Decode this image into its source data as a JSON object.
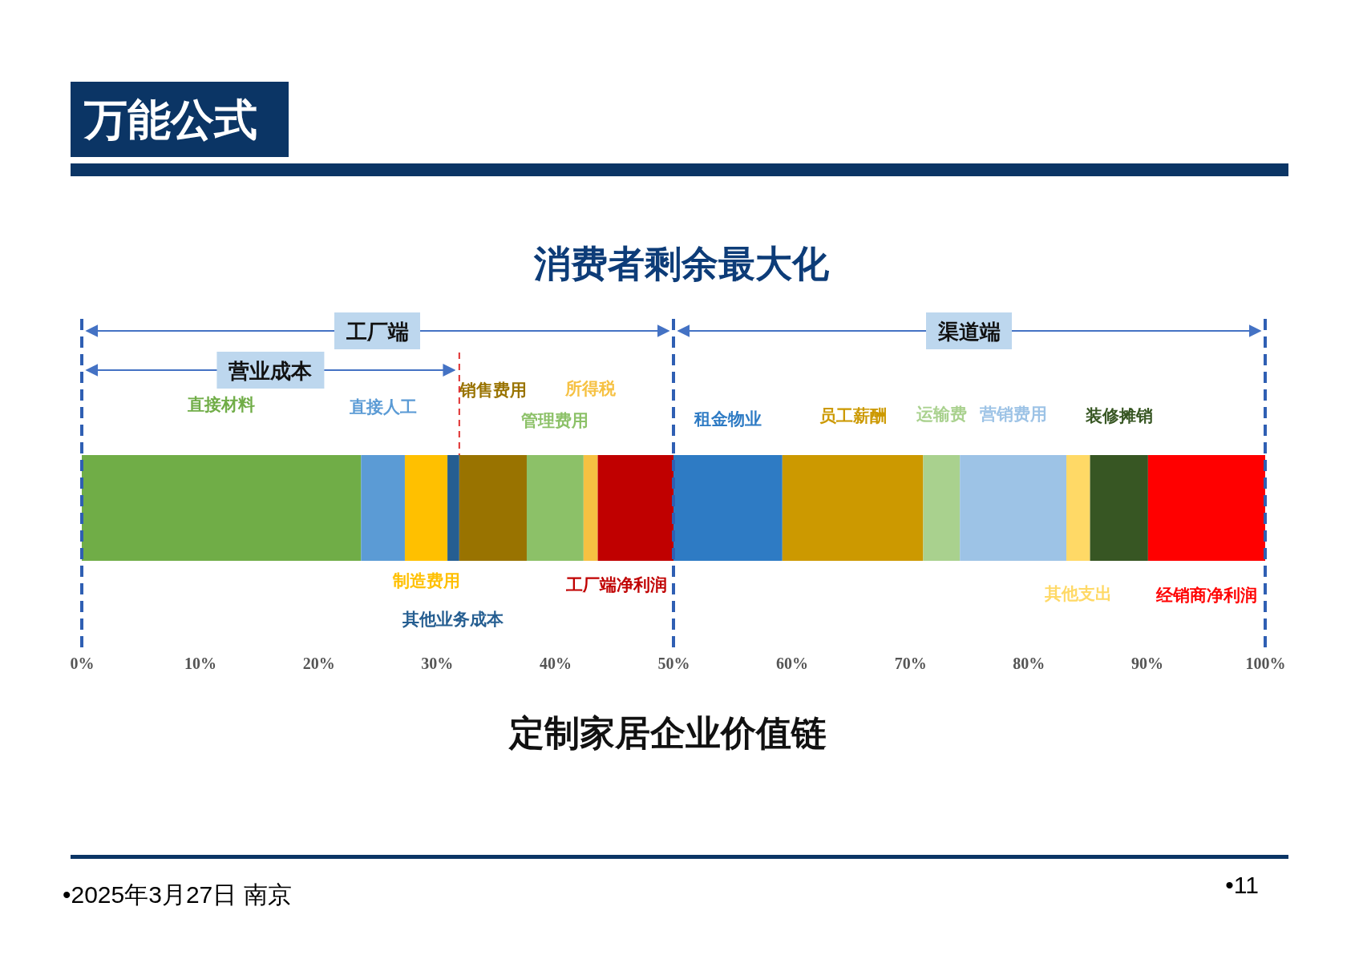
{
  "chart_data": {
    "type": "bar",
    "orientation": "horizontal",
    "stacked": true,
    "title": "消费者剩余最大化",
    "categories": [
      null
    ],
    "series": [
      {
        "name": "直接材料",
        "color": "#70ad47",
        "values": [
          23.6
        ]
      },
      {
        "name": "直接人工",
        "color": "#5b9bd5",
        "values": [
          3.7
        ]
      },
      {
        "name": "制造费用",
        "color": "#ffc000",
        "values": [
          3.6
        ]
      },
      {
        "name": "其他业务成本",
        "color": "#255e91",
        "values": [
          1.0
        ]
      },
      {
        "name": "销售费用",
        "color": "#997300",
        "values": [
          5.7
        ]
      },
      {
        "name": "管理费用",
        "color": "#8cc168",
        "values": [
          4.8
        ]
      },
      {
        "name": "所得税",
        "color": "#f6c142",
        "values": [
          1.2
        ]
      },
      {
        "name": "工厂端净利润",
        "color": "#c00000",
        "values": [
          6.4
        ]
      },
      {
        "name": "租金物业",
        "color": "#2e7bc4",
        "values": [
          9.2
        ]
      },
      {
        "name": "员工薪酬",
        "color": "#cc9900",
        "values": [
          11.9
        ]
      },
      {
        "name": "运输费",
        "color": "#a9d18e",
        "values": [
          3.1
        ]
      },
      {
        "name": "营销费用",
        "color": "#9dc3e6",
        "values": [
          9.0
        ]
      },
      {
        "name": "其他支出",
        "color": "#ffd966",
        "values": [
          2.0
        ]
      },
      {
        "name": "装修摊销",
        "color": "#375623",
        "values": [
          4.9
        ]
      },
      {
        "name": "经销商净利润",
        "color": "#ff0000",
        "values": [
          9.9
        ]
      }
    ],
    "xlim": [
      0,
      100
    ],
    "xticks": [
      {
        "value": 0,
        "label": "0%"
      },
      {
        "value": 10,
        "label": "10%"
      },
      {
        "value": 20,
        "label": "20%"
      },
      {
        "value": 30,
        "label": "30%"
      },
      {
        "value": 40,
        "label": "40%"
      },
      {
        "value": 50,
        "label": "50%"
      },
      {
        "value": 60,
        "label": "60%"
      },
      {
        "value": 70,
        "label": "70%"
      },
      {
        "value": 80,
        "label": "80%"
      },
      {
        "value": 90,
        "label": "90%"
      },
      {
        "value": 100,
        "label": "100%"
      }
    ],
    "tick_labels": "x",
    "ref_lines": [
      {
        "axis": "x",
        "value": 0,
        "color": "#2f5fb3",
        "line_style": "dashed"
      },
      {
        "axis": "x",
        "value": 50,
        "color": "#2f5fb3",
        "line_style": "dashed"
      },
      {
        "axis": "x",
        "value": 100,
        "color": "#2f5fb3",
        "line_style": "dashed"
      },
      {
        "axis": "x",
        "value": 31.9,
        "color": "#e03030",
        "line_style": "dashed"
      }
    ],
    "annotations": [
      "万能公式",
      "定制家居企业价值链",
      "•2025年3月27日 南京",
      "•11",
      "工厂端",
      "渠道端",
      "营业成本"
    ]
  }
}
